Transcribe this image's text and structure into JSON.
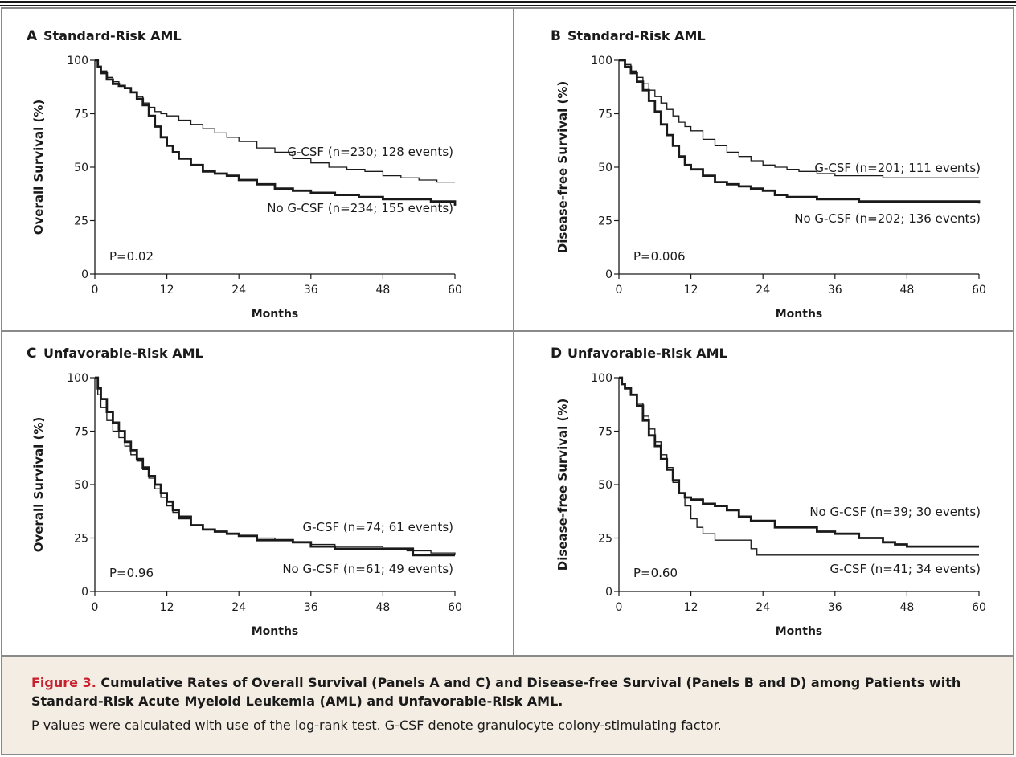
{
  "figure": {
    "label": "Figure 3.",
    "title": "Cumulative Rates of Overall Survival (Panels A and C) and Disease-free Survival (Panels B and D) among Patients with Standard-Risk Acute Myeloid Leukemia (AML) and Unfavorable-Risk AML.",
    "note": "P values were calculated with use of the log-rank test. G-CSF denote granulocyte colony-stimulating factor."
  },
  "colors": {
    "line": "#1a1a1a",
    "border": "#8a8a8a",
    "caption_bg": "#f3ede3",
    "accent": "#c8202f"
  },
  "chart_data": [
    {
      "panel": "A",
      "type": "line",
      "title": "Standard-Risk AML",
      "xlabel": "Months",
      "ylabel": "Overall Survival (%)",
      "xlim": [
        0,
        60
      ],
      "ylim": [
        0,
        100
      ],
      "xticks": [
        0,
        12,
        24,
        36,
        48,
        60
      ],
      "yticks": [
        0,
        25,
        50,
        75,
        100
      ],
      "pvalue": "P=0.02",
      "series": [
        {
          "name": "G-CSF (n=230; 128 events)",
          "weight": "thin",
          "x": [
            0,
            0.5,
            1,
            2,
            3,
            4,
            5,
            6,
            7,
            8,
            9,
            10,
            11,
            12,
            14,
            16,
            18,
            20,
            22,
            24,
            27,
            30,
            33,
            36,
            39,
            42,
            45,
            48,
            51,
            54,
            57,
            60
          ],
          "y": [
            100,
            97,
            95,
            92,
            90,
            88,
            87,
            85,
            83,
            80,
            78,
            76,
            75,
            74,
            72,
            70,
            68,
            66,
            64,
            62,
            59,
            57,
            54,
            52,
            50,
            49,
            48,
            46,
            45,
            44,
            43,
            43
          ]
        },
        {
          "name": "No G-CSF (n=234; 155 events)",
          "weight": "thick",
          "x": [
            0,
            0.5,
            1,
            2,
            3,
            4,
            5,
            6,
            7,
            8,
            9,
            10,
            11,
            12,
            13,
            14,
            16,
            18,
            20,
            22,
            24,
            27,
            30,
            33,
            36,
            40,
            44,
            48,
            52,
            56,
            59,
            60
          ],
          "y": [
            100,
            97,
            94,
            91,
            89,
            88,
            87,
            85,
            82,
            79,
            74,
            69,
            64,
            60,
            57,
            54,
            51,
            48,
            47,
            46,
            44,
            42,
            40,
            39,
            38,
            37,
            36,
            35,
            35,
            34,
            34,
            32
          ]
        }
      ],
      "annotations": [
        "G-CSF (n=230; 128 events)",
        "No G-CSF (n=234; 155 events)"
      ]
    },
    {
      "panel": "B",
      "type": "line",
      "title": "Standard-Risk AML",
      "xlabel": "Months",
      "ylabel": "Disease-free Survival (%)",
      "xlim": [
        0,
        60
      ],
      "ylim": [
        0,
        100
      ],
      "xticks": [
        0,
        12,
        24,
        36,
        48,
        60
      ],
      "yticks": [
        0,
        25,
        50,
        75,
        100
      ],
      "pvalue": "P=0.006",
      "series": [
        {
          "name": "G-CSF (n=201; 111 events)",
          "weight": "thin",
          "x": [
            0,
            1,
            2,
            3,
            4,
            5,
            6,
            7,
            8,
            9,
            10,
            11,
            12,
            14,
            16,
            18,
            20,
            22,
            24,
            26,
            28,
            30,
            33,
            36,
            40,
            44,
            48,
            52,
            56,
            60
          ],
          "y": [
            100,
            98,
            95,
            92,
            89,
            86,
            83,
            80,
            77,
            74,
            71,
            69,
            67,
            63,
            60,
            57,
            55,
            53,
            51,
            50,
            49,
            48,
            47,
            46,
            46,
            45,
            45,
            45,
            45,
            45
          ]
        },
        {
          "name": "No G-CSF (n=202; 136 events)",
          "weight": "thick",
          "x": [
            0,
            1,
            2,
            3,
            4,
            5,
            6,
            7,
            8,
            9,
            10,
            11,
            12,
            14,
            16,
            18,
            20,
            22,
            24,
            26,
            28,
            30,
            33,
            36,
            40,
            44,
            48,
            52,
            56,
            59,
            60
          ],
          "y": [
            100,
            97,
            94,
            90,
            86,
            81,
            76,
            70,
            65,
            60,
            55,
            51,
            49,
            46,
            43,
            42,
            41,
            40,
            39,
            37,
            36,
            36,
            35,
            35,
            34,
            34,
            34,
            34,
            34,
            34,
            33
          ]
        }
      ],
      "annotations": [
        "G-CSF (n=201; 111 events)",
        "No G-CSF (n=202; 136 events)"
      ]
    },
    {
      "panel": "C",
      "type": "line",
      "title": "Unfavorable-Risk AML",
      "xlabel": "Months",
      "ylabel": "Overall Survival (%)",
      "xlim": [
        0,
        60
      ],
      "ylim": [
        0,
        100
      ],
      "xticks": [
        0,
        12,
        24,
        36,
        48,
        60
      ],
      "yticks": [
        0,
        25,
        50,
        75,
        100
      ],
      "pvalue": "P=0.96",
      "series": [
        {
          "name": "G-CSF (n=74; 61 events)",
          "weight": "thin",
          "x": [
            0,
            0.5,
            1,
            2,
            3,
            4,
            5,
            6,
            7,
            8,
            9,
            10,
            11,
            12,
            13,
            14,
            16,
            18,
            20,
            22,
            24,
            27,
            30,
            33,
            36,
            40,
            44,
            48,
            52,
            56,
            60
          ],
          "y": [
            100,
            92,
            86,
            80,
            75,
            72,
            68,
            64,
            61,
            57,
            53,
            48,
            44,
            40,
            37,
            34,
            31,
            29,
            28,
            27,
            26,
            25,
            24,
            23,
            22,
            21,
            21,
            20,
            19,
            18,
            17
          ]
        },
        {
          "name": "No G-CSF (n=61; 49 events)",
          "weight": "thick",
          "x": [
            0,
            0.5,
            1,
            2,
            3,
            4,
            5,
            6,
            7,
            8,
            9,
            10,
            11,
            12,
            13,
            14,
            16,
            18,
            20,
            22,
            24,
            27,
            30,
            33,
            36,
            40,
            44,
            48,
            52,
            53,
            56,
            60
          ],
          "y": [
            100,
            95,
            90,
            84,
            79,
            75,
            70,
            66,
            62,
            58,
            54,
            50,
            46,
            42,
            38,
            35,
            31,
            29,
            28,
            27,
            26,
            24,
            24,
            23,
            21,
            20,
            20,
            20,
            20,
            17,
            17,
            17
          ]
        }
      ],
      "annotations": [
        "G-CSF (n=74; 61 events)",
        "No G-CSF (n=61; 49 events)"
      ]
    },
    {
      "panel": "D",
      "type": "line",
      "title": "Unfavorable-Risk AML",
      "xlabel": "Months",
      "ylabel": "Disease-free Survival (%)",
      "xlim": [
        0,
        60
      ],
      "ylim": [
        0,
        100
      ],
      "xticks": [
        0,
        12,
        24,
        36,
        48,
        60
      ],
      "yticks": [
        0,
        25,
        50,
        75,
        100
      ],
      "pvalue": "P=0.60",
      "series": [
        {
          "name": "G-CSF (n=41; 34 events)",
          "weight": "thin",
          "x": [
            0,
            0.5,
            1,
            2,
            3,
            4,
            5,
            6,
            7,
            8,
            9,
            10,
            11,
            12,
            13,
            14,
            16,
            18,
            20,
            22,
            23,
            26,
            30,
            36,
            42,
            48,
            54,
            60
          ],
          "y": [
            100,
            97,
            95,
            92,
            88,
            82,
            76,
            70,
            64,
            58,
            51,
            46,
            40,
            34,
            30,
            27,
            24,
            24,
            24,
            20,
            17,
            17,
            17,
            17,
            17,
            17,
            17,
            17
          ]
        },
        {
          "name": "No G-CSF (n=39; 30 events)",
          "weight": "thick",
          "x": [
            0,
            0.5,
            1,
            2,
            3,
            4,
            5,
            6,
            7,
            8,
            9,
            10,
            11,
            12,
            14,
            16,
            18,
            20,
            22,
            24,
            26,
            28,
            30,
            33,
            36,
            40,
            44,
            46,
            48,
            52,
            56,
            60
          ],
          "y": [
            100,
            97,
            95,
            92,
            87,
            80,
            73,
            68,
            62,
            57,
            52,
            46,
            44,
            43,
            41,
            40,
            38,
            35,
            33,
            33,
            30,
            30,
            30,
            28,
            27,
            25,
            23,
            22,
            21,
            21,
            21,
            21
          ]
        }
      ],
      "annotations": [
        "No G-CSF (n=39; 30 events)",
        "G-CSF (n=41; 34 events)"
      ]
    }
  ]
}
